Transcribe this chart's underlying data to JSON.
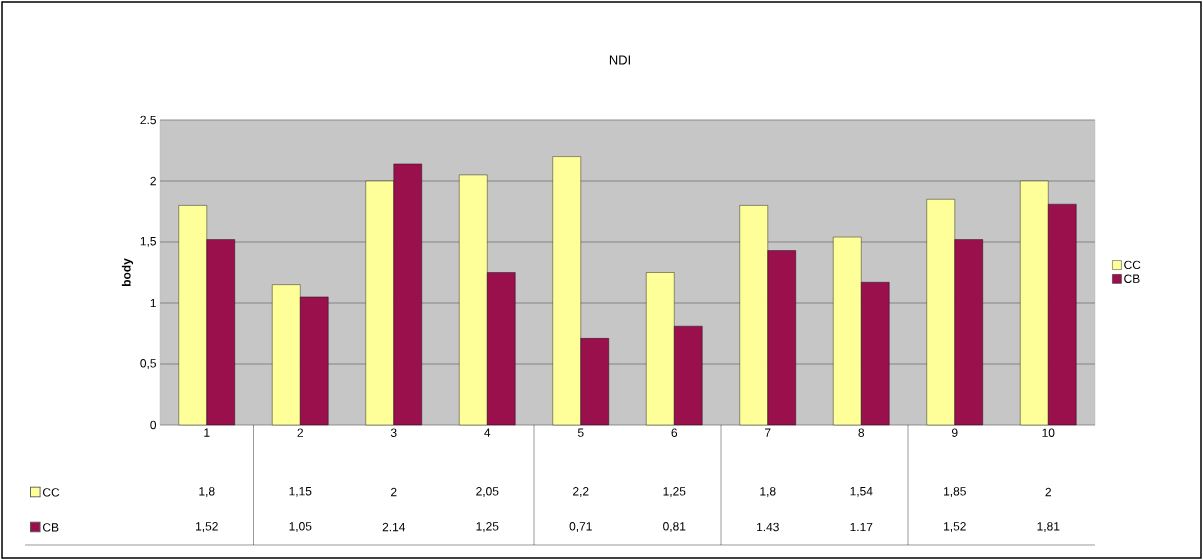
{
  "chart_data": {
    "type": "bar",
    "title": "NDI",
    "ylabel": "body",
    "categories": [
      "1",
      "2",
      "3",
      "4",
      "5",
      "6",
      "7",
      "8",
      "9",
      "10"
    ],
    "series": [
      {
        "name": "CC",
        "color": "#ffff99",
        "values": [
          1.8,
          1.15,
          2,
          2.05,
          2.2,
          1.25,
          1.8,
          1.54,
          1.85,
          2
        ],
        "value_labels": [
          "1,8",
          "1,15",
          "2",
          "2,05",
          "2,2",
          "1,25",
          "1,8",
          "1,54",
          "1,85",
          "2"
        ]
      },
      {
        "name": "CB",
        "color": "#99104d",
        "values": [
          1.52,
          1.05,
          2.14,
          1.25,
          0.71,
          0.81,
          1.43,
          1.17,
          1.52,
          1.81
        ],
        "value_labels": [
          "1,52",
          "1,05",
          "2.14",
          "1,25",
          "0,71",
          "0,81",
          "1.43",
          "1.17",
          "1,52",
          "1,81"
        ]
      }
    ],
    "ylim": [
      0,
      2.5
    ],
    "yticks": [
      0,
      {
        "value": 0.5,
        "label": "0,5"
      },
      1,
      {
        "value": 1.5,
        "label": "1,5"
      },
      2,
      2.5
    ],
    "grid": "y",
    "legend": "right"
  }
}
